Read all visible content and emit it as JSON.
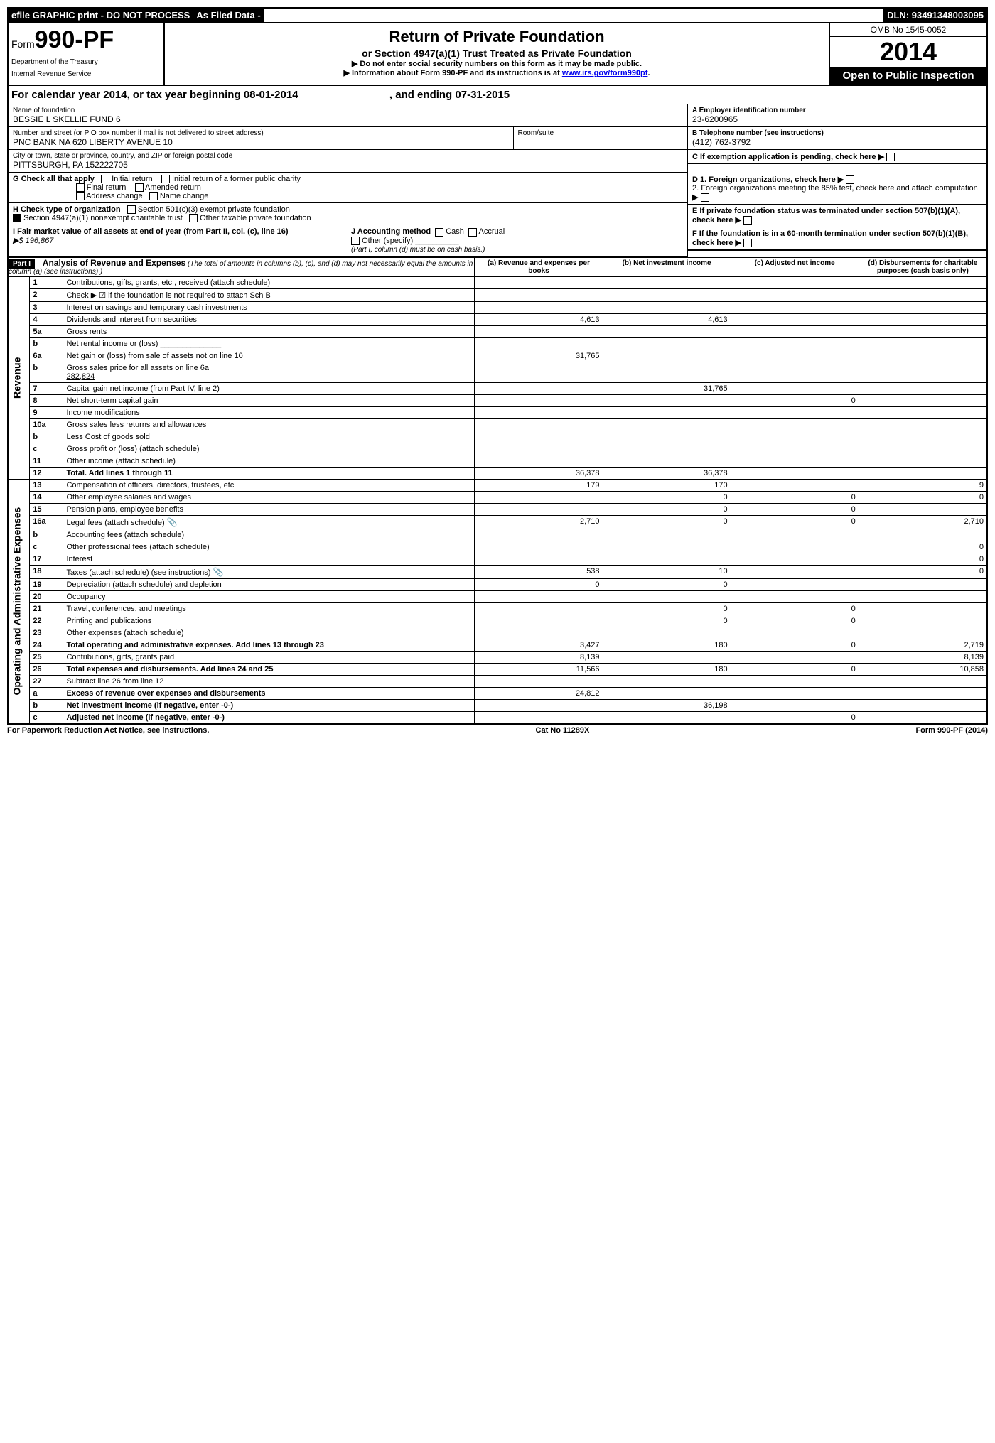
{
  "topbar": {
    "efile": "efile GRAPHIC print - DO NOT PROCESS",
    "asfiled": "As Filed Data -",
    "dln_lbl": "DLN:",
    "dln": "93491348003095"
  },
  "header": {
    "form_word": "Form",
    "form_no": "990-PF",
    "dept1": "Department of the Treasury",
    "dept2": "Internal Revenue Service",
    "title": "Return of Private Foundation",
    "sub": "or Section 4947(a)(1) Trust Treated as Private Foundation",
    "note1": "▶ Do not enter social security numbers on this form as it may be made public.",
    "note2_a": "▶ Information about Form 990-PF and its instructions is at ",
    "note2_link": "www.irs.gov/form990pf",
    "note2_b": ".",
    "omb": "OMB No 1545-0052",
    "year": "2014",
    "open": "Open to Public Inspection"
  },
  "calyear": {
    "a": "For calendar year 2014, or tax year beginning ",
    "begin": "08-01-2014",
    "b": ", and ending ",
    "end": "07-31-2015"
  },
  "info": {
    "name_lbl": "Name of foundation",
    "name": "BESSIE L SKELLIE FUND 6",
    "addr_lbl": "Number and street (or P O  box number if mail is not delivered to street address)",
    "addr": "PNC BANK NA 620 LIBERTY AVENUE 10",
    "room_lbl": "Room/suite",
    "city_lbl": "City or town, state or province, country, and ZIP or foreign postal code",
    "city": "PITTSBURGH, PA  152222705",
    "a_lbl": "A Employer identification number",
    "a_val": "23-6200965",
    "b_lbl": "B Telephone number (see instructions)",
    "b_val": "(412) 762-3792",
    "c_lbl": "C If exemption application is pending, check here"
  },
  "g": {
    "g_lbl": "G Check all that apply",
    "g1": "Initial return",
    "g2": "Initial return of a former public charity",
    "g3": "Final return",
    "g4": "Amended return",
    "g5": "Address change",
    "g6": "Name change",
    "h_lbl": "H Check type of organization",
    "h1": "Section 501(c)(3) exempt private foundation",
    "h2": "Section 4947(a)(1) nonexempt charitable trust",
    "h3": "Other taxable private foundation",
    "i_lbl": "I Fair market value of all assets at end of year (from Part II, col. (c), line 16)",
    "i_val": "▶$  196,867",
    "j_lbl": "J Accounting method",
    "j1": "Cash",
    "j2": "Accrual",
    "j3": "Other (specify)",
    "j_note": "(Part I, column (d) must be on cash basis.)",
    "d1": "D 1. Foreign organizations, check here",
    "d2": "2. Foreign organizations meeting the 85% test, check here and attach computation",
    "e": "E If private foundation status was terminated under section 507(b)(1)(A), check here",
    "f": "F If the foundation is in a 60-month termination under section 507(b)(1)(B), check here"
  },
  "table": {
    "part": "Part I",
    "part_title": "Analysis of Revenue and Expenses",
    "part_note": "(The total of amounts in columns (b), (c), and (d) may not necessarily equal the amounts in column (a) (see instructions) )",
    "col_a": "(a) Revenue and expenses per books",
    "col_b": "(b) Net investment income",
    "col_c": "(c) Adjusted net income",
    "col_d": "(d) Disbursements for charitable purposes (cash basis only)",
    "side_rev": "Revenue",
    "side_exp": "Operating and Administrative Expenses",
    "rows": [
      {
        "n": "1",
        "d": "Contributions, gifts, grants, etc , received (attach schedule)"
      },
      {
        "n": "2",
        "d": "Check ▶ ☑ if the foundation is not required to attach Sch B"
      },
      {
        "n": "3",
        "d": "Interest on savings and temporary cash investments"
      },
      {
        "n": "4",
        "d": "Dividends and interest from securities",
        "a": "4,613",
        "b": "4,613"
      },
      {
        "n": "5a",
        "d": "Gross rents"
      },
      {
        "n": "b",
        "d": "Net rental income or (loss) ______________"
      },
      {
        "n": "6a",
        "d": "Net gain or (loss) from sale of assets not on line 10",
        "a": "31,765"
      },
      {
        "n": "b",
        "d": "Gross sales price for all assets on line 6a",
        "sub": "282,824"
      },
      {
        "n": "7",
        "d": "Capital gain net income (from Part IV, line 2)",
        "b": "31,765"
      },
      {
        "n": "8",
        "d": "Net short-term capital gain",
        "c": "0"
      },
      {
        "n": "9",
        "d": "Income modifications"
      },
      {
        "n": "10a",
        "d": "Gross sales less returns and allowances"
      },
      {
        "n": "b",
        "d": "Less  Cost of goods sold"
      },
      {
        "n": "c",
        "d": "Gross profit or (loss) (attach schedule)"
      },
      {
        "n": "11",
        "d": "Other income (attach schedule)"
      },
      {
        "n": "12",
        "d": "Total. Add lines 1 through 11",
        "a": "36,378",
        "b": "36,378",
        "bold": true
      },
      {
        "n": "13",
        "d": "Compensation of officers, directors, trustees, etc",
        "a": "179",
        "b": "170",
        "dd": "9"
      },
      {
        "n": "14",
        "d": "Other employee salaries and wages",
        "b": "0",
        "c": "0",
        "dd": "0"
      },
      {
        "n": "15",
        "d": "Pension plans, employee benefits",
        "b": "0",
        "c": "0"
      },
      {
        "n": "16a",
        "d": "Legal fees (attach schedule)",
        "icon": true,
        "a": "2,710",
        "b": "0",
        "c": "0",
        "dd": "2,710"
      },
      {
        "n": "b",
        "d": "Accounting fees (attach schedule)"
      },
      {
        "n": "c",
        "d": "Other professional fees (attach schedule)",
        "dd": "0"
      },
      {
        "n": "17",
        "d": "Interest",
        "dd": "0"
      },
      {
        "n": "18",
        "d": "Taxes (attach schedule) (see instructions)",
        "icon": true,
        "a": "538",
        "b": "10",
        "dd": "0"
      },
      {
        "n": "19",
        "d": "Depreciation (attach schedule) and depletion",
        "a": "0",
        "b": "0"
      },
      {
        "n": "20",
        "d": "Occupancy"
      },
      {
        "n": "21",
        "d": "Travel, conferences, and meetings",
        "b": "0",
        "c": "0"
      },
      {
        "n": "22",
        "d": "Printing and publications",
        "b": "0",
        "c": "0"
      },
      {
        "n": "23",
        "d": "Other expenses (attach schedule)"
      },
      {
        "n": "24",
        "d": "Total operating and administrative expenses. Add lines 13 through 23",
        "a": "3,427",
        "b": "180",
        "c": "0",
        "dd": "2,719",
        "bold": true
      },
      {
        "n": "25",
        "d": "Contributions, gifts, grants paid",
        "a": "8,139",
        "dd": "8,139"
      },
      {
        "n": "26",
        "d": "Total expenses and disbursements. Add lines 24 and 25",
        "a": "11,566",
        "b": "180",
        "c": "0",
        "dd": "10,858",
        "bold": true
      },
      {
        "n": "27",
        "d": "Subtract line 26 from line 12"
      },
      {
        "n": "a",
        "d": "Excess of revenue over expenses and disbursements",
        "a": "24,812",
        "bold": true
      },
      {
        "n": "b",
        "d": "Net investment income (if negative, enter -0-)",
        "b": "36,198",
        "bold": true
      },
      {
        "n": "c",
        "d": "Adjusted net income (if negative, enter -0-)",
        "c": "0",
        "bold": true
      }
    ]
  },
  "footer": {
    "left": "For Paperwork Reduction Act Notice, see instructions.",
    "mid": "Cat No 11289X",
    "right": "Form 990-PF (2014)"
  }
}
